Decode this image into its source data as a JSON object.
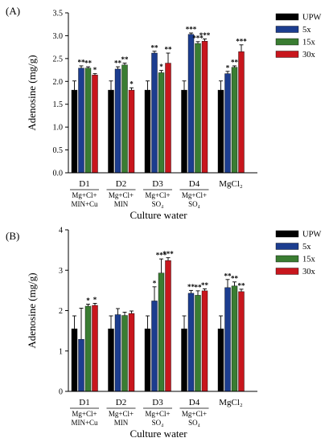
{
  "chart_data": [
    {
      "type": "bar",
      "panel_label": "(A)",
      "ylabel": "Adenosine (mg/g)",
      "xlabel": "Culture water",
      "ylim": [
        0,
        3.5
      ],
      "yticks": [
        "0.0",
        "0.5",
        "1.0",
        "1.5",
        "2.0",
        "2.5",
        "3.0",
        "3.5"
      ],
      "categories": [
        "D1",
        "D2",
        "D3",
        "D4",
        "MgCl2"
      ],
      "category_labels": [
        "D1",
        "D2",
        "D3",
        "D4",
        "MgCl₂"
      ],
      "sub_labels": [
        [
          "Mg+Cl+",
          "MIN+Cu"
        ],
        [
          "Mg+Cl+",
          "MIN"
        ],
        [
          "Mg+Cl+",
          "SO₄"
        ],
        [
          "Mg+Cl+",
          "SO₄"
        ],
        []
      ],
      "series": [
        {
          "name": "UPW",
          "values": [
            1.81,
            1.81,
            1.81,
            1.81,
            1.81
          ],
          "errors": [
            0.2,
            0.2,
            0.2,
            0.2,
            0.2
          ],
          "stars": [
            "",
            "",
            "",
            "",
            ""
          ]
        },
        {
          "name": "5x",
          "values": [
            2.29,
            2.27,
            2.62,
            3.03,
            2.17
          ],
          "errors": [
            0.05,
            0.05,
            0.04,
            0.03,
            0.05
          ],
          "stars": [
            "**",
            "**",
            "**",
            "***",
            "*"
          ]
        },
        {
          "name": "15x",
          "values": [
            2.29,
            2.36,
            2.19,
            2.83,
            2.31
          ],
          "errors": [
            0.03,
            0.04,
            0.05,
            0.04,
            0.03
          ],
          "stars": [
            "**",
            "**",
            "*",
            "***",
            "**"
          ]
        },
        {
          "name": "30x",
          "values": [
            2.14,
            1.81,
            2.4,
            2.88,
            2.65
          ],
          "errors": [
            0.03,
            0.05,
            0.22,
            0.05,
            0.15
          ],
          "stars": [
            "*",
            "*",
            "**",
            "***",
            "***"
          ]
        }
      ],
      "legend": [
        "UPW",
        "5x",
        "15x",
        "30x"
      ],
      "legend_position": "top-right"
    },
    {
      "type": "bar",
      "panel_label": "(B)",
      "ylabel": "Adenosine (mg/g)",
      "xlabel": "Culture water",
      "ylim": [
        0,
        4
      ],
      "yticks": [
        "0",
        "1",
        "2",
        "3",
        "4"
      ],
      "categories": [
        "D1",
        "D2",
        "D3",
        "D4",
        "MgCl2"
      ],
      "category_labels": [
        "D1",
        "D2",
        "D3",
        "D4",
        "MgCl₂"
      ],
      "sub_labels": [
        [
          "Mg+Cl+",
          "MIN+Cu"
        ],
        [
          "Mg+Cl+",
          "MIN"
        ],
        [
          "Mg+Cl+",
          "SO₄"
        ],
        [
          "Mg+Cl+",
          "SO₄"
        ],
        []
      ],
      "series": [
        {
          "name": "UPW",
          "values": [
            1.55,
            1.55,
            1.55,
            1.55,
            1.55
          ],
          "errors": [
            0.32,
            0.32,
            0.32,
            0.32,
            0.32
          ],
          "stars": [
            "",
            "",
            "",
            "",
            ""
          ]
        },
        {
          "name": "5x",
          "values": [
            1.29,
            1.9,
            2.24,
            2.43,
            2.57
          ],
          "errors": [
            0.77,
            0.15,
            0.35,
            0.07,
            0.2
          ],
          "stars": [
            "",
            "",
            "*",
            "**",
            "**"
          ]
        },
        {
          "name": "15x",
          "values": [
            2.11,
            1.88,
            2.93,
            2.38,
            2.61
          ],
          "errors": [
            0.05,
            0.08,
            0.35,
            0.11,
            0.1
          ],
          "stars": [
            "*",
            "",
            "***",
            "**",
            "**"
          ]
        },
        {
          "name": "30x",
          "values": [
            2.13,
            1.93,
            3.24,
            2.49,
            2.47
          ],
          "errors": [
            0.05,
            0.06,
            0.07,
            0.05,
            0.06
          ],
          "stars": [
            "*",
            "",
            "***",
            "**",
            "**"
          ]
        }
      ],
      "legend": [
        "UPW",
        "5x",
        "15x",
        "30x"
      ],
      "legend_position": "top-right"
    }
  ],
  "colors": {
    "UPW": "#000000",
    "5x": "#1c3d8f",
    "15x": "#3a7d32",
    "30x": "#c8161d"
  }
}
